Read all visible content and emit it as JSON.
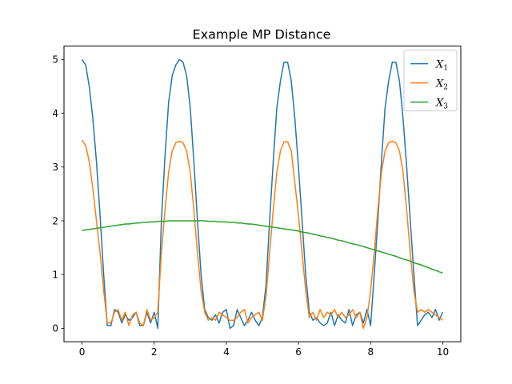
{
  "chart_data": {
    "type": "line",
    "title": "Example MP Distance",
    "xlabel": "",
    "ylabel": "",
    "xlim": [
      -0.5,
      10.5
    ],
    "ylim": [
      -0.25,
      5.25
    ],
    "xticks": [
      0,
      2,
      4,
      6,
      8,
      10
    ],
    "yticks": [
      0,
      1,
      2,
      3,
      4,
      5
    ],
    "grid": false,
    "legend_position": "top-right",
    "x": [
      0.0,
      0.1,
      0.2,
      0.3,
      0.4,
      0.5,
      0.6,
      0.7,
      0.8,
      0.9,
      1.0,
      1.1,
      1.2,
      1.3,
      1.4,
      1.5,
      1.6,
      1.7,
      1.8,
      1.9,
      2.0,
      2.1,
      2.2,
      2.3,
      2.4,
      2.5,
      2.6,
      2.7,
      2.8,
      2.9,
      3.0,
      3.1,
      3.2,
      3.3,
      3.4,
      3.5,
      3.6,
      3.7,
      3.8,
      3.9,
      4.0,
      4.1,
      4.2,
      4.3,
      4.4,
      4.5,
      4.6,
      4.7,
      4.8,
      4.9,
      5.0,
      5.1,
      5.2,
      5.3,
      5.4,
      5.5,
      5.6,
      5.7,
      5.8,
      5.9,
      6.0,
      6.1,
      6.2,
      6.3,
      6.4,
      6.5,
      6.6,
      6.7,
      6.8,
      6.9,
      7.0,
      7.1,
      7.2,
      7.3,
      7.4,
      7.5,
      7.6,
      7.7,
      7.8,
      7.9,
      8.0,
      8.1,
      8.2,
      8.3,
      8.4,
      8.5,
      8.6,
      8.7,
      8.8,
      8.9,
      9.0,
      9.1,
      9.2,
      9.3,
      9.4,
      9.5,
      9.6,
      9.7,
      9.8,
      9.9,
      10.0
    ],
    "series": [
      {
        "name": "X",
        "subscript": "1",
        "color": "#1f77b4",
        "values": [
          5.0,
          4.9,
          4.5,
          3.9,
          3.1,
          2.1,
          1.0,
          0.05,
          0.05,
          0.35,
          0.3,
          0.1,
          0.25,
          0.15,
          0.2,
          0.3,
          0.05,
          0.05,
          0.3,
          0.1,
          0.3,
          0.0,
          2.0,
          3.2,
          4.2,
          4.7,
          4.9,
          5.0,
          4.95,
          4.7,
          4.1,
          3.1,
          2.0,
          1.0,
          0.35,
          0.2,
          0.15,
          0.25,
          0.1,
          0.3,
          0.35,
          0.0,
          0.05,
          0.35,
          0.2,
          0.05,
          0.15,
          0.3,
          0.15,
          0.05,
          0.2,
          0.8,
          2.0,
          3.1,
          4.1,
          4.6,
          4.95,
          4.95,
          4.6,
          3.9,
          3.0,
          2.0,
          1.0,
          0.3,
          0.15,
          0.2,
          0.1,
          0.05,
          0.1,
          0.3,
          0.05,
          0.25,
          0.15,
          0.1,
          0.35,
          0.05,
          0.25,
          0.3,
          0.1,
          0.35,
          0.05,
          1.0,
          2.0,
          3.1,
          4.1,
          4.6,
          4.95,
          4.95,
          4.6,
          3.9,
          3.0,
          2.0,
          1.0,
          0.05,
          0.15,
          0.25,
          0.3,
          0.2,
          0.35,
          0.15,
          0.3
        ]
      },
      {
        "name": "X",
        "subscript": "2",
        "color": "#ff7f0e",
        "values": [
          3.5,
          3.4,
          3.1,
          2.6,
          2.0,
          1.4,
          0.7,
          0.1,
          0.1,
          0.3,
          0.35,
          0.15,
          0.3,
          0.05,
          0.25,
          0.3,
          0.1,
          0.05,
          0.35,
          0.15,
          0.2,
          0.3,
          1.4,
          2.2,
          2.9,
          3.3,
          3.45,
          3.48,
          3.45,
          3.3,
          2.9,
          2.2,
          1.4,
          0.7,
          0.3,
          0.15,
          0.2,
          0.15,
          0.3,
          0.25,
          0.2,
          0.15,
          0.15,
          0.2,
          0.3,
          0.35,
          0.1,
          0.2,
          0.25,
          0.3,
          0.15,
          0.6,
          1.4,
          2.2,
          2.9,
          3.3,
          3.47,
          3.47,
          3.3,
          2.7,
          2.1,
          1.4,
          0.7,
          0.2,
          0.3,
          0.15,
          0.35,
          0.2,
          0.3,
          0.25,
          0.35,
          0.2,
          0.3,
          0.2,
          0.25,
          0.35,
          0.2,
          0.3,
          0.0,
          0.2,
          0.7,
          1.4,
          2.2,
          2.9,
          3.3,
          3.45,
          3.48,
          3.45,
          3.3,
          2.9,
          2.2,
          1.4,
          0.7,
          0.3,
          0.35,
          0.3,
          0.35,
          0.3,
          0.25,
          0.2,
          0.15
        ]
      },
      {
        "name": "X",
        "subscript": "3",
        "color": "#2ca02c",
        "values": [
          1.82,
          1.83,
          1.84,
          1.85,
          1.86,
          1.87,
          1.88,
          1.89,
          1.9,
          1.91,
          1.92,
          1.93,
          1.94,
          1.94,
          1.95,
          1.96,
          1.96,
          1.97,
          1.97,
          1.98,
          1.98,
          1.99,
          1.99,
          1.99,
          2.0,
          2.0,
          2.0,
          2.0,
          2.0,
          2.0,
          2.0,
          2.0,
          2.0,
          2.0,
          2.0,
          1.99,
          1.99,
          1.99,
          1.98,
          1.98,
          1.98,
          1.97,
          1.97,
          1.96,
          1.96,
          1.95,
          1.94,
          1.94,
          1.93,
          1.92,
          1.91,
          1.9,
          1.89,
          1.88,
          1.87,
          1.86,
          1.85,
          1.84,
          1.83,
          1.82,
          1.81,
          1.79,
          1.78,
          1.77,
          1.75,
          1.74,
          1.72,
          1.71,
          1.69,
          1.68,
          1.66,
          1.64,
          1.63,
          1.61,
          1.59,
          1.57,
          1.56,
          1.54,
          1.52,
          1.5,
          1.48,
          1.46,
          1.44,
          1.42,
          1.4,
          1.38,
          1.36,
          1.34,
          1.31,
          1.29,
          1.27,
          1.25,
          1.22,
          1.2,
          1.18,
          1.15,
          1.13,
          1.1,
          1.08,
          1.05,
          1.03
        ]
      }
    ]
  }
}
